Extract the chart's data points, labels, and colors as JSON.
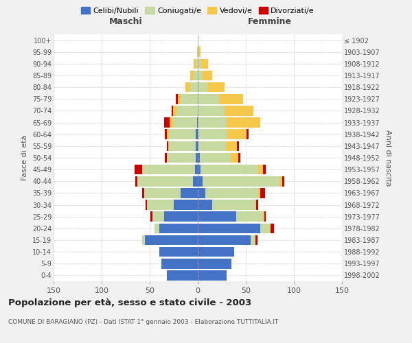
{
  "age_groups": [
    "0-4",
    "5-9",
    "10-14",
    "15-19",
    "20-24",
    "25-29",
    "30-34",
    "35-39",
    "40-44",
    "45-49",
    "50-54",
    "55-59",
    "60-64",
    "65-69",
    "70-74",
    "75-79",
    "80-84",
    "85-89",
    "90-94",
    "95-99",
    "100+"
  ],
  "birth_years": [
    "1998-2002",
    "1993-1997",
    "1988-1992",
    "1983-1987",
    "1978-1982",
    "1973-1977",
    "1968-1972",
    "1963-1967",
    "1958-1962",
    "1953-1957",
    "1948-1952",
    "1943-1947",
    "1938-1942",
    "1933-1937",
    "1928-1932",
    "1923-1927",
    "1918-1922",
    "1913-1917",
    "1908-1912",
    "1903-1907",
    "≤ 1902"
  ],
  "males": {
    "celibi": [
      32,
      38,
      40,
      55,
      40,
      35,
      25,
      18,
      5,
      3,
      2,
      2,
      2,
      1,
      0,
      0,
      0,
      0,
      0,
      0,
      0
    ],
    "coniugati": [
      0,
      0,
      0,
      3,
      5,
      12,
      28,
      38,
      58,
      55,
      30,
      28,
      28,
      25,
      22,
      18,
      8,
      4,
      2,
      1,
      0
    ],
    "vedovi": [
      0,
      0,
      0,
      0,
      0,
      0,
      0,
      0,
      0,
      0,
      0,
      1,
      2,
      3,
      4,
      3,
      5,
      4,
      2,
      0,
      0
    ],
    "divorziati": [
      0,
      0,
      0,
      0,
      0,
      2,
      1,
      2,
      2,
      8,
      2,
      1,
      2,
      6,
      1,
      2,
      0,
      0,
      0,
      0,
      0
    ]
  },
  "females": {
    "nubili": [
      30,
      35,
      38,
      55,
      65,
      40,
      15,
      8,
      5,
      3,
      2,
      1,
      1,
      0,
      0,
      0,
      0,
      0,
      0,
      0,
      0
    ],
    "coniugate": [
      0,
      0,
      0,
      5,
      10,
      28,
      45,
      55,
      80,
      60,
      32,
      28,
      30,
      30,
      28,
      22,
      10,
      5,
      3,
      1,
      0
    ],
    "vedove": [
      0,
      0,
      0,
      0,
      1,
      1,
      1,
      2,
      3,
      5,
      8,
      12,
      20,
      35,
      30,
      25,
      18,
      10,
      8,
      2,
      0
    ],
    "divorziate": [
      0,
      0,
      0,
      2,
      3,
      2,
      2,
      5,
      2,
      3,
      2,
      2,
      2,
      0,
      0,
      0,
      0,
      0,
      0,
      0,
      0
    ]
  },
  "colors": {
    "celibi": "#4472c4",
    "coniugati": "#c5d9a0",
    "vedovi": "#f5c84c",
    "divorziati": "#cc0000"
  },
  "xlim": 150,
  "title": "Popolazione per età, sesso e stato civile - 2003",
  "subtitle": "COMUNE DI BARAGIANO (PZ) - Dati ISTAT 1° gennaio 2003 - Elaborazione TUTTITALIA.IT",
  "ylabel_left": "Fasce di età",
  "ylabel_right": "Anni di nascita",
  "xlabel_left": "Maschi",
  "xlabel_right": "Femmine",
  "legend_labels": [
    "Celibi/Nubili",
    "Coniugati/e",
    "Vedovi/e",
    "Divorziati/e"
  ],
  "bg_color": "#f0f0f0",
  "plot_bg": "#ffffff"
}
